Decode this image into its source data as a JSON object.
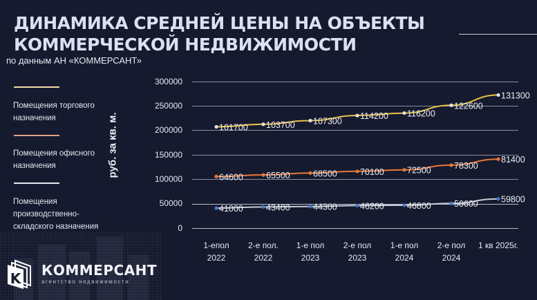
{
  "header": {
    "title_line1": "ДИНАМИКА СРЕДНЕЙ ЦЕНЫ НА ОБЪЕКТЫ",
    "title_line2": "КОММЕРЧЕСКОЙ НЕДВИЖИМОСТИ",
    "subtitle": "по данным АН «КОММЕРСАНТ»"
  },
  "legend": [
    {
      "line1": "Помещения торгового",
      "line2": "назначения",
      "line3": "",
      "color": "#f1d9a8"
    },
    {
      "line1": "Помещения офисного",
      "line2": "назначения",
      "line3": "",
      "color": "#e0a488"
    },
    {
      "line1": "Помещения",
      "line2": "производственно-",
      "line3": "складского назначения",
      "color": "#e8eaf2"
    }
  ],
  "logo": {
    "name": "КОММЕРСАНТ",
    "tagline": "агентство недвижимости",
    "icon": "k-letter-pages-icon"
  },
  "chart_data": {
    "type": "line",
    "stacked": true,
    "title": "ДИНАМИКА СРЕДНЕЙ ЦЕНЫ НА ОБЪЕКТЫ КОММЕРЧЕСКОЙ НЕДВИЖИМОСТИ",
    "subtitle": "по данным АН «КОММЕРСАНТ»",
    "xlabel": "",
    "ylabel": "руб. за кв. м.",
    "ylim": [
      0,
      300000
    ],
    "yticks": [
      "300000",
      "250000",
      "200000",
      "150000",
      "100000",
      "50000",
      "0"
    ],
    "grid": true,
    "legend_position": "left",
    "categories": [
      [
        "1-епол",
        "2022"
      ],
      [
        "2-е пол.",
        "2022"
      ],
      [
        "1-е пол",
        "2023"
      ],
      [
        "2-е пол",
        "2023"
      ],
      [
        "1-е пол",
        "2024"
      ],
      [
        "2-е пол",
        "2024"
      ],
      [
        "1 кв 2025г.",
        ""
      ]
    ],
    "series": [
      {
        "name": "Помещения производственно-складского назначения",
        "line_color": "#c9ccd6",
        "marker_color": "#4a78c8",
        "values": [
          41000,
          43400,
          44300,
          46200,
          46800,
          50600,
          59800
        ]
      },
      {
        "name": "Помещения офисного назначения",
        "line_color": "#e5793a",
        "marker_color": "#e5793a",
        "values": [
          64600,
          65500,
          68500,
          70100,
          72500,
          78300,
          81400
        ]
      },
      {
        "name": "Помещения торгового назначения",
        "line_color": "#e8c14a",
        "marker_color": "#dfe1ea",
        "values": [
          101700,
          103700,
          107300,
          114200,
          116200,
          122600,
          131300
        ]
      }
    ]
  }
}
